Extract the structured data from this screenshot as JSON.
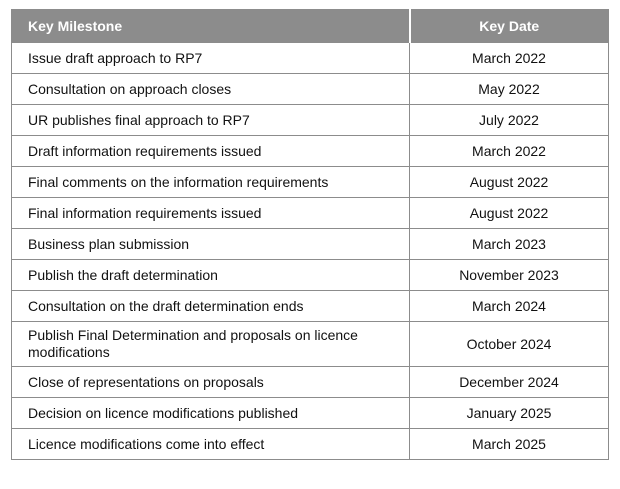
{
  "table": {
    "headers": {
      "milestone": "Key Milestone",
      "date": "Key Date"
    },
    "rows": [
      {
        "milestone": "Issue draft approach to RP7",
        "date": "March 2022"
      },
      {
        "milestone": "Consultation on approach closes",
        "date": "May 2022"
      },
      {
        "milestone": "UR publishes final approach to RP7",
        "date": "July 2022"
      },
      {
        "milestone": "Draft information requirements issued",
        "date": "March 2022"
      },
      {
        "milestone": "Final comments on the information requirements",
        "date": "August 2022"
      },
      {
        "milestone": "Final information requirements issued",
        "date": "August 2022"
      },
      {
        "milestone": "Business plan submission",
        "date": "March 2023"
      },
      {
        "milestone": "Publish the draft determination",
        "date": "November 2023"
      },
      {
        "milestone": "Consultation on the draft determination ends",
        "date": "March 2024"
      },
      {
        "milestone": "Publish Final Determination and proposals on licence modifications",
        "date": "October 2024"
      },
      {
        "milestone": "Close of representations on proposals",
        "date": "December 2024"
      },
      {
        "milestone": "Decision on licence modifications published",
        "date": "January 2025"
      },
      {
        "milestone": "Licence modifications come into effect",
        "date": "March 2025"
      }
    ]
  },
  "colors": {
    "header_bg": "#8c8c8c",
    "header_text": "#ffffff",
    "border": "#8c8c8c"
  }
}
